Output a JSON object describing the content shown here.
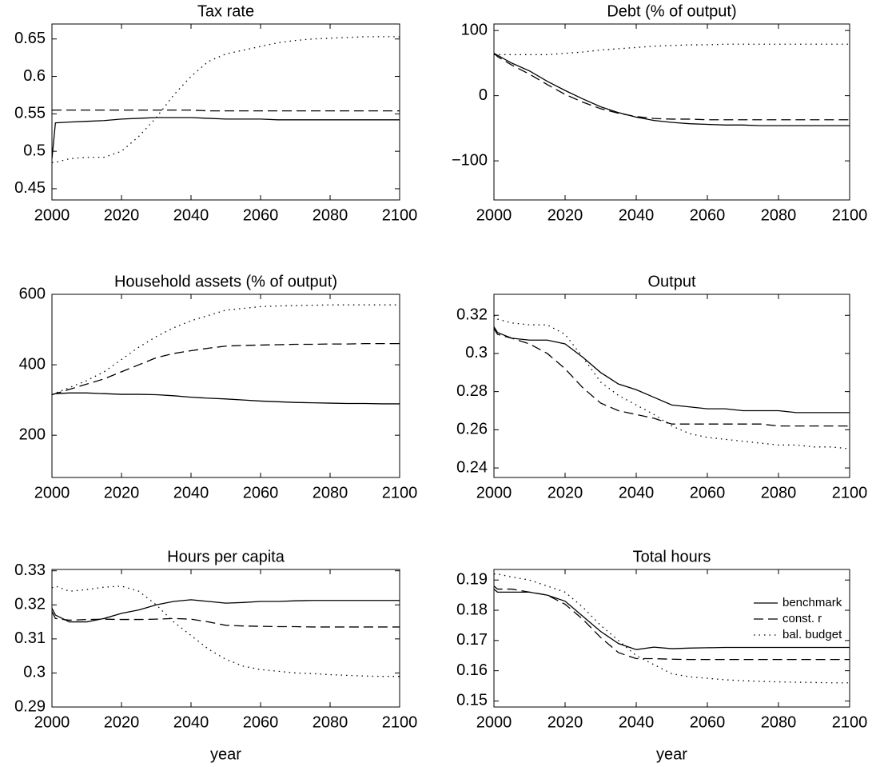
{
  "chart_data": [
    {
      "type": "line",
      "title": "Tax rate",
      "x": [
        2000,
        2001,
        2005,
        2010,
        2015,
        2020,
        2025,
        2030,
        2035,
        2040,
        2045,
        2050,
        2055,
        2060,
        2065,
        2070,
        2075,
        2080,
        2085,
        2090,
        2095,
        2100
      ],
      "series": [
        {
          "color": "#000000",
          "dash": "solid",
          "values": [
            0.49,
            0.538,
            0.539,
            0.54,
            0.541,
            0.543,
            0.544,
            0.545,
            0.545,
            0.545,
            0.544,
            0.543,
            0.543,
            0.543,
            0.542,
            0.542,
            0.542,
            0.542,
            0.542,
            0.542,
            0.542,
            0.542
          ]
        },
        {
          "color": "#000000",
          "dash": "dashed",
          "values": [
            0.555,
            0.555,
            0.555,
            0.555,
            0.555,
            0.555,
            0.555,
            0.555,
            0.555,
            0.555,
            0.554,
            0.554,
            0.554,
            0.554,
            0.554,
            0.554,
            0.554,
            0.554,
            0.554,
            0.554,
            0.554,
            0.554
          ]
        },
        {
          "color": "#000000",
          "dash": "dotted",
          "values": [
            0.485,
            0.485,
            0.49,
            0.492,
            0.492,
            0.5,
            0.52,
            0.545,
            0.575,
            0.6,
            0.62,
            0.63,
            0.635,
            0.64,
            0.645,
            0.648,
            0.65,
            0.651,
            0.652,
            0.653,
            0.653,
            0.653
          ]
        }
      ],
      "xlim": [
        2000,
        2100
      ],
      "xticks": [
        2000,
        2020,
        2040,
        2060,
        2080,
        2100
      ],
      "ylim": [
        0.435,
        0.67
      ],
      "yticks": [
        0.45,
        0.5,
        0.55,
        0.6,
        0.65
      ]
    },
    {
      "type": "line",
      "title": "Debt (% of output)",
      "x": [
        2000,
        2001,
        2005,
        2010,
        2015,
        2020,
        2025,
        2030,
        2035,
        2040,
        2045,
        2050,
        2055,
        2060,
        2065,
        2070,
        2075,
        2080,
        2085,
        2090,
        2095,
        2100
      ],
      "series": [
        {
          "color": "#000000",
          "dash": "solid",
          "values": [
            65,
            62,
            50,
            38,
            22,
            8,
            -5,
            -17,
            -26,
            -33,
            -38,
            -41,
            -43,
            -44,
            -45,
            -45,
            -46,
            -46,
            -46,
            -46,
            -46,
            -46
          ]
        },
        {
          "color": "#000000",
          "dash": "dashed",
          "values": [
            65,
            60,
            47,
            33,
            17,
            2,
            -10,
            -20,
            -27,
            -32,
            -35,
            -36,
            -36,
            -37,
            -37,
            -37,
            -37,
            -37,
            -37,
            -37,
            -37,
            -37
          ]
        },
        {
          "color": "#000000",
          "dash": "dotted",
          "values": [
            63,
            63,
            63,
            63,
            63,
            65,
            67,
            70,
            72,
            74,
            76,
            77,
            78,
            78,
            79,
            79,
            79,
            79,
            79,
            79,
            79,
            79
          ]
        }
      ],
      "xlim": [
        2000,
        2100
      ],
      "xticks": [
        2000,
        2020,
        2040,
        2060,
        2080,
        2100
      ],
      "ylim": [
        -160,
        110
      ],
      "yticks": [
        {
          "value": -100,
          "label": "−100"
        },
        0,
        100
      ]
    },
    {
      "type": "line",
      "title": "Household assets (% of output)",
      "x": [
        2000,
        2001,
        2005,
        2010,
        2015,
        2020,
        2025,
        2030,
        2035,
        2040,
        2045,
        2050,
        2055,
        2060,
        2065,
        2070,
        2075,
        2080,
        2085,
        2090,
        2095,
        2100
      ],
      "series": [
        {
          "color": "#000000",
          "dash": "solid",
          "values": [
            315,
            318,
            320,
            320,
            318,
            316,
            316,
            315,
            312,
            308,
            305,
            303,
            300,
            297,
            295,
            293,
            292,
            291,
            290,
            290,
            289,
            289
          ]
        },
        {
          "color": "#000000",
          "dash": "dashed",
          "values": [
            315,
            318,
            330,
            345,
            360,
            380,
            400,
            420,
            432,
            440,
            447,
            453,
            455,
            456,
            457,
            458,
            458,
            459,
            459,
            460,
            460,
            460
          ]
        },
        {
          "color": "#000000",
          "dash": "dotted",
          "values": [
            315,
            320,
            335,
            355,
            380,
            415,
            450,
            480,
            505,
            525,
            540,
            555,
            560,
            565,
            567,
            568,
            569,
            570,
            570,
            570,
            570,
            570
          ]
        }
      ],
      "xlim": [
        2000,
        2100
      ],
      "xticks": [
        2000,
        2020,
        2040,
        2060,
        2080,
        2100
      ],
      "ylim": [
        80,
        600
      ],
      "yticks": [
        200,
        400,
        600
      ]
    },
    {
      "type": "line",
      "title": "Output",
      "x": [
        2000,
        2001,
        2005,
        2010,
        2015,
        2020,
        2025,
        2030,
        2035,
        2040,
        2045,
        2050,
        2055,
        2060,
        2065,
        2070,
        2075,
        2080,
        2085,
        2090,
        2095,
        2100
      ],
      "series": [
        {
          "color": "#000000",
          "dash": "solid",
          "values": [
            0.314,
            0.311,
            0.308,
            0.307,
            0.307,
            0.305,
            0.298,
            0.29,
            0.284,
            0.281,
            0.277,
            0.273,
            0.272,
            0.271,
            0.271,
            0.27,
            0.27,
            0.27,
            0.269,
            0.269,
            0.269,
            0.269
          ]
        },
        {
          "color": "#000000",
          "dash": "dashed",
          "values": [
            0.313,
            0.31,
            0.308,
            0.305,
            0.3,
            0.292,
            0.282,
            0.274,
            0.27,
            0.268,
            0.266,
            0.263,
            0.263,
            0.263,
            0.263,
            0.263,
            0.263,
            0.262,
            0.262,
            0.262,
            0.262,
            0.262
          ]
        },
        {
          "color": "#000000",
          "dash": "dotted",
          "values": [
            0.32,
            0.318,
            0.316,
            0.315,
            0.315,
            0.31,
            0.298,
            0.285,
            0.278,
            0.273,
            0.268,
            0.262,
            0.258,
            0.256,
            0.255,
            0.254,
            0.253,
            0.252,
            0.252,
            0.251,
            0.251,
            0.25
          ]
        }
      ],
      "xlim": [
        2000,
        2100
      ],
      "xticks": [
        2000,
        2020,
        2040,
        2060,
        2080,
        2100
      ],
      "ylim": [
        0.235,
        0.331
      ],
      "yticks": [
        0.24,
        0.26,
        0.28,
        0.3,
        0.32
      ]
    },
    {
      "type": "line",
      "title": "Hours per capita",
      "xlabel": "year",
      "x": [
        2000,
        2001,
        2005,
        2010,
        2015,
        2020,
        2025,
        2030,
        2035,
        2040,
        2045,
        2050,
        2055,
        2060,
        2065,
        2070,
        2075,
        2080,
        2085,
        2090,
        2095,
        2100
      ],
      "series": [
        {
          "color": "#000000",
          "dash": "solid",
          "values": [
            0.319,
            0.317,
            0.315,
            0.315,
            0.316,
            0.3175,
            0.3185,
            0.32,
            0.321,
            0.3215,
            0.321,
            0.3205,
            0.3207,
            0.321,
            0.321,
            0.3212,
            0.3213,
            0.3213,
            0.3213,
            0.3213,
            0.3213,
            0.3213
          ]
        },
        {
          "color": "#000000",
          "dash": "dashed",
          "values": [
            0.318,
            0.316,
            0.3155,
            0.3157,
            0.3158,
            0.3157,
            0.3157,
            0.3158,
            0.316,
            0.3158,
            0.315,
            0.314,
            0.3138,
            0.3137,
            0.3136,
            0.3136,
            0.3135,
            0.3135,
            0.3135,
            0.3135,
            0.3135,
            0.3135
          ]
        },
        {
          "color": "#000000",
          "dash": "dotted",
          "values": [
            0.325,
            0.3255,
            0.324,
            0.3245,
            0.3252,
            0.3255,
            0.324,
            0.32,
            0.315,
            0.311,
            0.307,
            0.304,
            0.302,
            0.301,
            0.3005,
            0.3,
            0.2998,
            0.2995,
            0.2993,
            0.2991,
            0.299,
            0.299
          ]
        }
      ],
      "xlim": [
        2000,
        2100
      ],
      "xticks": [
        2000,
        2020,
        2040,
        2060,
        2080,
        2100
      ],
      "ylim": [
        0.29,
        0.3304
      ],
      "yticks": [
        0.29,
        0.3,
        0.31,
        0.32,
        0.33
      ]
    },
    {
      "type": "line",
      "title": "Total hours",
      "xlabel": "year",
      "legend": "upper right",
      "x": [
        2000,
        2001,
        2005,
        2010,
        2015,
        2020,
        2025,
        2030,
        2035,
        2040,
        2045,
        2050,
        2055,
        2060,
        2065,
        2070,
        2075,
        2080,
        2085,
        2090,
        2095,
        2100
      ],
      "series": [
        {
          "name": "benchmark",
          "color": "#000000",
          "dash": "solid",
          "values": [
            0.187,
            0.186,
            0.186,
            0.186,
            0.185,
            0.183,
            0.178,
            0.173,
            0.169,
            0.167,
            0.1678,
            0.1673,
            0.1675,
            0.1676,
            0.1677,
            0.1677,
            0.1677,
            0.1677,
            0.1677,
            0.1677,
            0.1677,
            0.1677
          ]
        },
        {
          "name": "const. r",
          "color": "#000000",
          "dash": "dashed",
          "values": [
            0.188,
            0.187,
            0.187,
            0.186,
            0.185,
            0.182,
            0.177,
            0.171,
            0.166,
            0.164,
            0.164,
            0.1638,
            0.1637,
            0.1637,
            0.1637,
            0.1637,
            0.1637,
            0.1637,
            0.1637,
            0.1637,
            0.1637,
            0.1637
          ]
        },
        {
          "name": "bal. budget",
          "color": "#000000",
          "dash": "dotted",
          "values": [
            0.192,
            0.192,
            0.191,
            0.19,
            0.188,
            0.186,
            0.181,
            0.175,
            0.17,
            0.165,
            0.162,
            0.159,
            0.158,
            0.1575,
            0.157,
            0.1567,
            0.1565,
            0.1563,
            0.1562,
            0.1561,
            0.156,
            0.156
          ]
        }
      ],
      "xlim": [
        2000,
        2100
      ],
      "xticks": [
        2000,
        2020,
        2040,
        2060,
        2080,
        2100
      ],
      "ylim": [
        0.148,
        0.1935
      ],
      "yticks": [
        0.15,
        0.16,
        0.17,
        0.18,
        0.19
      ]
    }
  ]
}
